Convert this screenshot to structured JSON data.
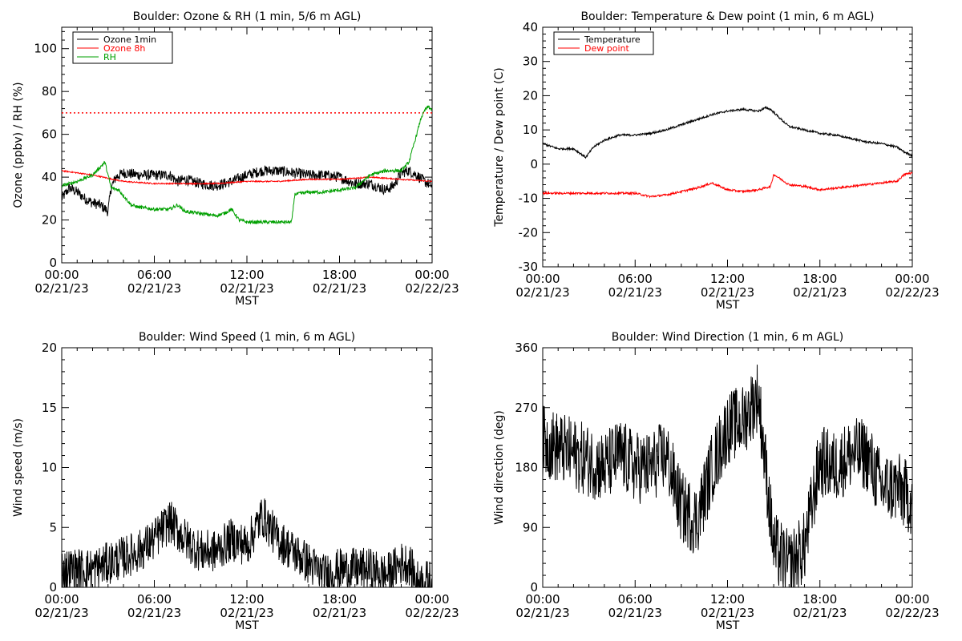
{
  "time_ticks": [
    {
      "time": "00:00",
      "date": "02/21/23"
    },
    {
      "time": "06:00",
      "date": "02/21/23"
    },
    {
      "time": "12:00",
      "date": "02/21/23"
    },
    {
      "time": "18:00",
      "date": "02/21/23"
    },
    {
      "time": "00:00",
      "date": "02/22/23"
    }
  ],
  "chart_data": [
    {
      "type": "line",
      "title": "Boulder: Ozone & RH (1 min, 5/6 m AGL)",
      "xlabel": "MST",
      "ylabel": "Ozone (ppbv) / RH (%)",
      "x_unit": "hours since 02/21/23 00:00",
      "xlim": [
        0,
        24
      ],
      "ylim": [
        0,
        110
      ],
      "yticks": [
        0,
        20,
        40,
        60,
        80,
        100
      ],
      "legend_position": "top-left",
      "reference_line": {
        "y": 70,
        "color": "#ff0000",
        "style": "dotted"
      },
      "series": [
        {
          "name": "Ozone 1min",
          "color": "#000000",
          "noise": 2.5,
          "x": [
            0,
            0.5,
            1,
            1.5,
            2,
            2.5,
            3,
            3.2,
            3.5,
            4,
            5,
            6,
            7,
            7.5,
            8,
            9,
            10,
            11,
            12,
            13,
            14,
            15,
            16,
            17,
            18,
            19,
            20,
            21,
            21.5,
            22,
            22.5,
            23,
            23.5,
            24
          ],
          "y": [
            30,
            35,
            33,
            30,
            28,
            27,
            24,
            35,
            40,
            42,
            41,
            41,
            41,
            38,
            39,
            37,
            36,
            38,
            41,
            43,
            43,
            42,
            41,
            41,
            40,
            37,
            37,
            34,
            36,
            42,
            43,
            41,
            38,
            36
          ]
        },
        {
          "name": "Ozone 8h",
          "color": "#ff0000",
          "noise": 0.3,
          "x": [
            0,
            2,
            4,
            6,
            8,
            10,
            12,
            14,
            16,
            18,
            20,
            22,
            24
          ],
          "y": [
            43,
            41,
            38,
            37,
            37,
            37,
            38,
            38,
            39,
            39,
            40,
            39,
            38
          ]
        },
        {
          "name": "RH",
          "color": "#00a000",
          "noise": 0.8,
          "x": [
            0,
            1,
            2,
            2.8,
            3.2,
            3.7,
            4.5,
            5,
            6,
            7,
            7.5,
            8,
            9,
            10,
            10.5,
            11,
            11.5,
            12,
            13,
            14.9,
            15.1,
            16,
            17,
            18,
            19,
            20,
            21,
            22,
            22.5,
            23,
            23.3,
            23.6,
            23.8,
            24
          ],
          "y": [
            36,
            38,
            41,
            47,
            35,
            34,
            27,
            26,
            25,
            25,
            27,
            24,
            23,
            22,
            23,
            25,
            20,
            19,
            19,
            19,
            32,
            33,
            33,
            34,
            35,
            41,
            43,
            43,
            47,
            60,
            68,
            72,
            73,
            71
          ]
        }
      ]
    },
    {
      "type": "line",
      "title": "Boulder: Temperature & Dew point (1 min, 6 m AGL)",
      "xlabel": "MST",
      "ylabel": "Temperature / Dew point (C)",
      "x_unit": "hours since 02/21/23 00:00",
      "xlim": [
        0,
        24
      ],
      "ylim": [
        -30,
        40
      ],
      "yticks": [
        -30,
        -20,
        -10,
        0,
        10,
        20,
        30,
        40
      ],
      "legend_position": "top-left",
      "series": [
        {
          "name": "Temperature",
          "color": "#000000",
          "noise": 0.3,
          "x": [
            0,
            1,
            2,
            2.8,
            3.3,
            4,
            5,
            6,
            7,
            8,
            9,
            10,
            11,
            12,
            13,
            14,
            14.5,
            14.8,
            15.5,
            16,
            17,
            18,
            19,
            20,
            21,
            22,
            22.5,
            23,
            23.5,
            24
          ],
          "y": [
            6,
            4.5,
            4.5,
            2,
            5,
            7,
            8.5,
            8.5,
            9,
            10,
            11.5,
            13,
            14.5,
            15.5,
            16,
            15.5,
            16.5,
            16,
            13,
            11,
            10,
            9,
            8.5,
            7.5,
            6.5,
            6,
            5.5,
            5,
            3.5,
            2.5
          ]
        },
        {
          "name": "Dew point",
          "color": "#ff0000",
          "noise": 0.3,
          "x": [
            0,
            2,
            4,
            6,
            7,
            8,
            9,
            10,
            11,
            12,
            13,
            14,
            14.8,
            15,
            16,
            17,
            18,
            19,
            20,
            21,
            22,
            23,
            23.5,
            24
          ],
          "y": [
            -8.5,
            -8.5,
            -8.5,
            -8.5,
            -9.5,
            -9,
            -8,
            -7,
            -5.5,
            -7.5,
            -8,
            -7.5,
            -6.5,
            -3,
            -6,
            -6.5,
            -7.5,
            -7,
            -6.5,
            -6,
            -5.5,
            -5,
            -3,
            -2.5
          ]
        }
      ]
    },
    {
      "type": "line",
      "title": "Boulder: Wind Speed (1 min, 6 m AGL)",
      "xlabel": "MST",
      "ylabel": "Wind speed (m/s)",
      "x_unit": "hours since 02/21/23 00:00",
      "xlim": [
        0,
        24
      ],
      "ylim": [
        0,
        20
      ],
      "yticks": [
        0,
        5,
        10,
        15,
        20
      ],
      "series": [
        {
          "name": "",
          "color": "#000000",
          "noise": 1.8,
          "x": [
            0,
            2,
            3,
            4,
            5,
            6,
            7,
            8,
            9,
            10,
            11,
            12,
            13,
            14,
            15,
            16,
            17,
            18,
            19,
            20,
            21,
            22,
            22.5,
            23,
            24
          ],
          "y": [
            1.5,
            1.5,
            2,
            2.5,
            3,
            4,
            5.5,
            4,
            3,
            3,
            4,
            3.5,
            6,
            4,
            3,
            2,
            1,
            1.5,
            1.5,
            1.5,
            1,
            2,
            2,
            0.5,
            0.5
          ]
        }
      ]
    },
    {
      "type": "line",
      "title": "Boulder: Wind Direction (1 min, 6 m AGL)",
      "xlabel": "MST",
      "ylabel": "Wind direction (deg)",
      "x_unit": "hours since 02/21/23 00:00",
      "xlim": [
        0,
        24
      ],
      "ylim": [
        0,
        360
      ],
      "yticks": [
        0,
        90,
        180,
        270,
        360
      ],
      "series": [
        {
          "name": "",
          "color": "#000000",
          "noise": 55,
          "x": [
            0,
            1,
            2,
            3,
            4,
            5,
            6,
            7,
            8,
            9,
            10,
            11,
            12,
            13,
            14,
            15,
            16,
            17,
            18,
            19,
            20,
            21,
            22,
            23,
            24
          ],
          "y": [
            220,
            210,
            200,
            190,
            180,
            200,
            180,
            180,
            200,
            120,
            100,
            180,
            240,
            250,
            290,
            60,
            30,
            60,
            190,
            180,
            200,
            200,
            150,
            150,
            130
          ]
        }
      ]
    }
  ]
}
